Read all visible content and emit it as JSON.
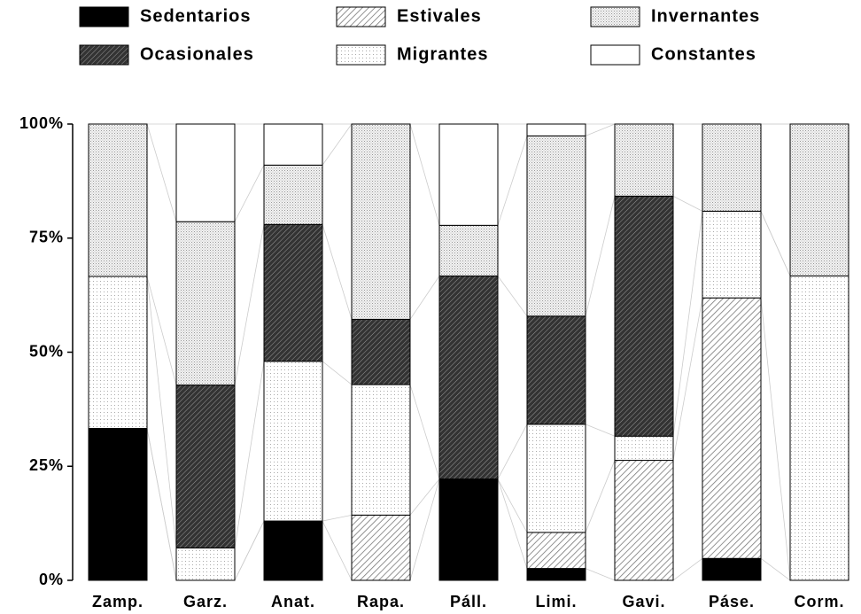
{
  "chart_data": {
    "type": "stacked_bar",
    "categories": [
      "Zamp.",
      "Garz.",
      "Anat.",
      "Rapa.",
      "Páll.",
      "Limi.",
      "Gavi.",
      "Páse.",
      "Corm."
    ],
    "series": [
      {
        "name": "Sedentarios",
        "color": "#000000",
        "values": [
          33.3,
          0,
          13,
          0,
          22.2,
          2.6,
          0,
          4.8,
          0
        ]
      },
      {
        "name": "Estivales",
        "color": "#b0b0b0",
        "values": [
          0,
          0,
          0,
          14.3,
          0,
          7.9,
          26.3,
          57.1,
          0
        ]
      },
      {
        "name": "Migrantes",
        "color": "#e4e4e4",
        "values": [
          33.3,
          7.1,
          35,
          28.6,
          0,
          23.7,
          5.3,
          19,
          66.7
        ]
      },
      {
        "name": "Ocasionales",
        "color": "#555555",
        "values": [
          0,
          35.7,
          30,
          14.3,
          44.5,
          23.7,
          52.6,
          0,
          0
        ]
      },
      {
        "name": "Invernantes",
        "color": "#d0d0d0",
        "values": [
          33.4,
          35.8,
          13,
          42.8,
          11.1,
          39.5,
          15.8,
          19.1,
          33.3
        ]
      },
      {
        "name": "Constantes",
        "color": "#ffffff",
        "values": [
          0,
          21.4,
          9,
          0,
          22.2,
          2.6,
          0,
          0,
          0
        ]
      }
    ],
    "ylim": [
      0,
      100
    ],
    "yticks": [
      {
        "value": 0,
        "label": "0%"
      },
      {
        "value": 25,
        "label": "25%"
      },
      {
        "value": 50,
        "label": "50%"
      },
      {
        "value": 75,
        "label": "75%"
      },
      {
        "value": 100,
        "label": "100%"
      }
    ]
  }
}
